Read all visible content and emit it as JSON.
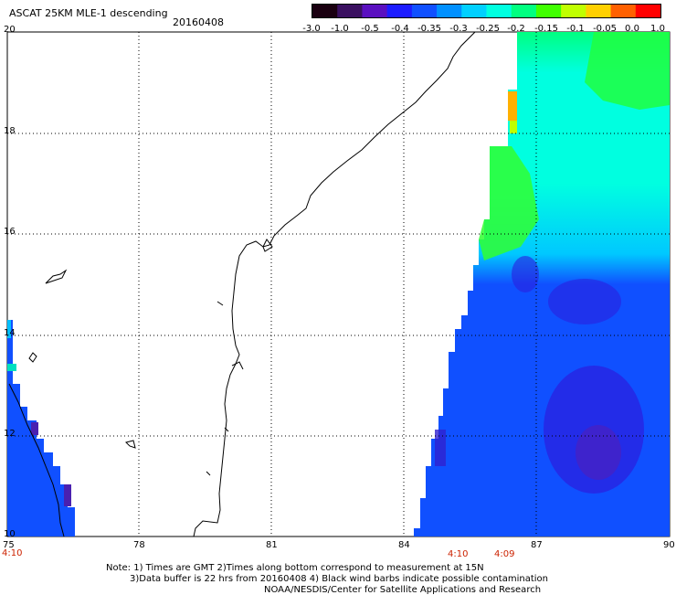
{
  "header": {
    "title": "ASCAT 25KM MLE-1 descending",
    "date": "20160408"
  },
  "colorbar": {
    "ticks": [
      "-3.0",
      "-1.0",
      "-0.5",
      "-0.4",
      "-0.35",
      "-0.3",
      "-0.25",
      "-0.2",
      "-0.15",
      "-0.1",
      "-0.05",
      "0.0",
      "1.0"
    ],
    "colors": [
      "#1a0010",
      "#3a1060",
      "#5a10c0",
      "#1c1cff",
      "#1050ff",
      "#0090ff",
      "#00d0ff",
      "#00ffe0",
      "#00ff80",
      "#40ff00",
      "#c0ff00",
      "#ffd000",
      "#ff6000",
      "#ff0000"
    ]
  },
  "map": {
    "lon_labels": [
      "75",
      "78",
      "81",
      "84",
      "87",
      "90"
    ],
    "lat_labels": [
      "20",
      "18",
      "16",
      "14",
      "12",
      "10"
    ],
    "time_labels": [
      "4:10",
      "4:10",
      "4:09"
    ]
  },
  "notes": {
    "line1": "Note: 1) Times are GMT 2)Times along bottom correspond to measurement at 15N",
    "line2": "3)Data buffer is 22 hrs from 20160408 4) Black wind barbs indicate possible contamination",
    "line3": "NOAA/NESDIS/Center for Satellite Applications and Research"
  }
}
